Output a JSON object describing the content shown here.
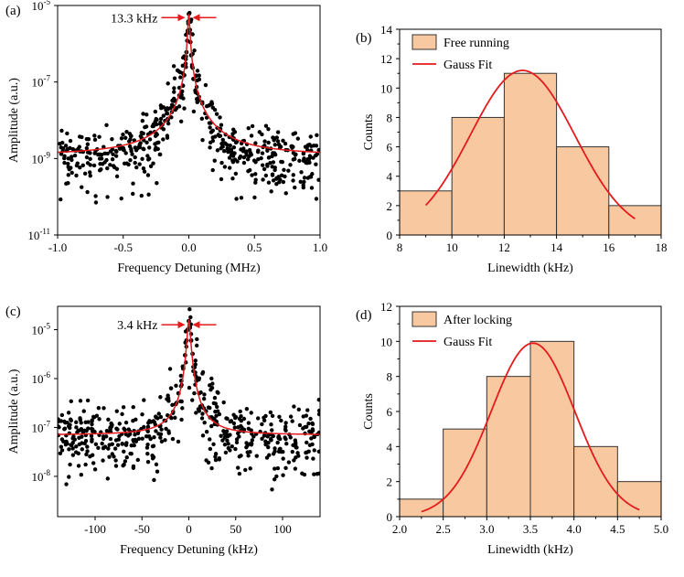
{
  "colors": {
    "bar_fill": "#f8c9a0",
    "bar_stroke": "#333333",
    "fit_line": "#e41a1c",
    "points": "#000000",
    "axes": "#000000"
  },
  "chart_data": [
    {
      "id": "a",
      "panel_label": "(a)",
      "type": "scatter",
      "title": "",
      "xlabel": "Frequency Detuning (MHz)",
      "ylabel": "Amplitude (a.u.)",
      "xlim": [
        -1.0,
        1.0
      ],
      "ylim": [
        1e-11,
        1e-05
      ],
      "yscale": "log",
      "xticks": [
        "-1.0",
        "-0.5",
        "0.0",
        "0.5",
        "1.0"
      ],
      "yticks": [
        {
          "base": "10",
          "exp": "-5"
        },
        {
          "base": "10",
          "exp": "-7"
        },
        {
          "base": "10",
          "exp": "-9"
        },
        {
          "base": "10",
          "exp": "-11"
        }
      ],
      "annotation": "13.3 kHz",
      "fit": {
        "model": "lorentzian",
        "baseline": 1.2e-09,
        "peak": 6e-06,
        "hwhm": 0.0065
      },
      "noise_floor": {
        "center": 1.2e-09,
        "spread_decades": 0.6
      },
      "peak_points": [
        [
          -0.06,
          4e-08
        ],
        [
          -0.045,
          8e-08
        ],
        [
          -0.035,
          1.5e-07
        ],
        [
          -0.025,
          3e-07
        ],
        [
          -0.018,
          6e-07
        ],
        [
          -0.012,
          1.2e-06
        ],
        [
          -0.008,
          2.2e-06
        ],
        [
          -0.004,
          3.8e-06
        ],
        [
          0.0,
          6e-06
        ],
        [
          0.004,
          4e-06
        ],
        [
          0.008,
          2.3e-06
        ],
        [
          0.012,
          1.1e-06
        ],
        [
          0.018,
          5e-07
        ],
        [
          0.025,
          2.5e-07
        ],
        [
          0.035,
          1.2e-07
        ],
        [
          0.05,
          6e-08
        ],
        [
          0.065,
          3e-08
        ]
      ]
    },
    {
      "id": "b",
      "panel_label": "(b)",
      "type": "bar",
      "title": "",
      "xlabel": "Linewidth (kHz)",
      "ylabel": "Counts",
      "xlim": [
        8,
        18
      ],
      "ylim": [
        0,
        14
      ],
      "xticks": [
        "8",
        "10",
        "12",
        "14",
        "16",
        "18"
      ],
      "yticks": [
        "0",
        "2",
        "4",
        "6",
        "8",
        "10",
        "12",
        "14"
      ],
      "bins": [
        {
          "start": 8.0,
          "end": 10.0,
          "count": 3
        },
        {
          "start": 10.0,
          "end": 12.0,
          "count": 8
        },
        {
          "start": 12.0,
          "end": 14.0,
          "count": 11
        },
        {
          "start": 14.0,
          "end": 16.0,
          "count": 6
        },
        {
          "start": 16.0,
          "end": 18.0,
          "count": 2
        }
      ],
      "legend": {
        "bars": "Free running",
        "line": "Gauss Fit",
        "position": "top-left"
      },
      "fit": {
        "model": "gauss",
        "amplitude": 11.2,
        "center": 12.7,
        "sigma": 2.0,
        "x_range": [
          9.0,
          17.0
        ]
      }
    },
    {
      "id": "c",
      "panel_label": "(c)",
      "type": "scatter",
      "title": "",
      "xlabel": "Frequency Detuning (kHz)",
      "ylabel": "Amplitude (a.u.)",
      "xlim": [
        -140,
        140
      ],
      "ylim": [
        1.5e-09,
        3e-05
      ],
      "yscale": "log",
      "xticks": [
        "-100",
        "-50",
        "0",
        "50",
        "100"
      ],
      "yticks": [
        {
          "base": "10",
          "exp": "-5"
        },
        {
          "base": "10",
          "exp": "-6"
        },
        {
          "base": "10",
          "exp": "-7"
        },
        {
          "base": "10",
          "exp": "-8"
        }
      ],
      "annotation": "3.4 kHz",
      "fit": {
        "model": "lorentzian",
        "baseline": 7e-08,
        "peak": 1.5e-05,
        "hwhm": 1.7
      },
      "noise_floor": {
        "center": 7e-08,
        "spread_decades": 0.55
      },
      "peak_points": [
        [
          -14,
          3e-07
        ],
        [
          -11,
          5e-07
        ],
        [
          -8,
          9e-07
        ],
        [
          -6,
          1.6e-06
        ],
        [
          -4,
          3e-06
        ],
        [
          -2.5,
          6e-06
        ],
        [
          -1.2,
          1e-05
        ],
        [
          0,
          1.5e-05
        ],
        [
          1.2,
          1.1e-05
        ],
        [
          2.5,
          6e-06
        ],
        [
          4,
          3.2e-06
        ],
        [
          6,
          1.7e-06
        ],
        [
          8,
          9e-07
        ],
        [
          11,
          5e-07
        ],
        [
          14,
          2.8e-07
        ]
      ]
    },
    {
      "id": "d",
      "panel_label": "(d)",
      "type": "bar",
      "title": "",
      "xlabel": "Linewidth (kHz)",
      "ylabel": "Counts",
      "xlim": [
        2.0,
        5.0
      ],
      "ylim": [
        0,
        12
      ],
      "xticks": [
        "2.0",
        "2.5",
        "3.0",
        "3.5",
        "4.0",
        "4.5",
        "5.0"
      ],
      "yticks": [
        "0",
        "2",
        "4",
        "6",
        "8",
        "10",
        "12"
      ],
      "bins": [
        {
          "start": 2.0,
          "end": 2.5,
          "count": 1
        },
        {
          "start": 2.5,
          "end": 3.0,
          "count": 5
        },
        {
          "start": 3.0,
          "end": 3.5,
          "count": 8
        },
        {
          "start": 3.5,
          "end": 4.0,
          "count": 10
        },
        {
          "start": 4.0,
          "end": 4.5,
          "count": 4
        },
        {
          "start": 4.5,
          "end": 5.0,
          "count": 2
        }
      ],
      "legend": {
        "bars": "After locking",
        "line": "Gauss Fit",
        "position": "top-left"
      },
      "fit": {
        "model": "gauss",
        "amplitude": 9.9,
        "center": 3.53,
        "sigma": 0.48,
        "x_range": [
          2.25,
          4.75
        ]
      }
    }
  ]
}
